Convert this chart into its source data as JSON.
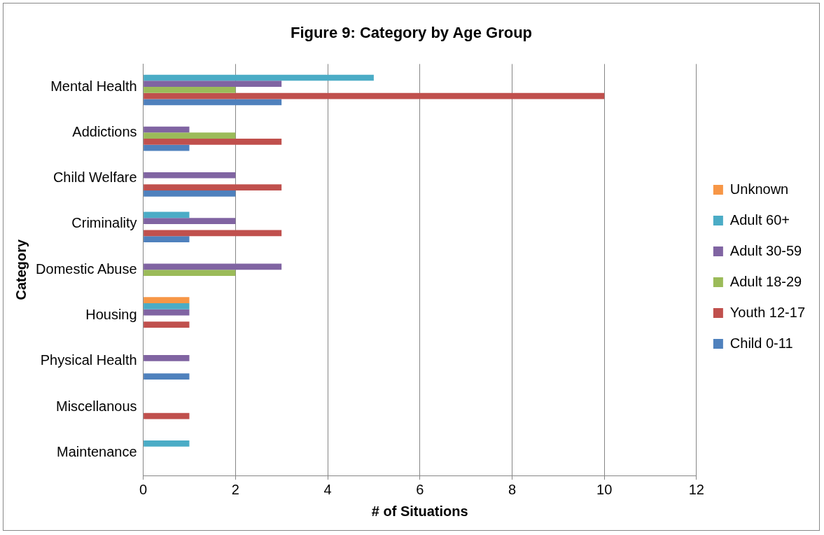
{
  "chart_data": {
    "type": "bar",
    "orientation": "horizontal",
    "title": "Figure 9: Category by Age Group",
    "xlabel": "# of Situations",
    "ylabel": "Category",
    "categories": [
      "Mental Health",
      "Addictions",
      "Child Welfare",
      "Criminality",
      "Domestic Abuse",
      "Housing",
      "Physical Health",
      "Miscellanous",
      "Maintenance"
    ],
    "series": [
      {
        "name": "Unknown",
        "color": "#f79646",
        "values": [
          null,
          null,
          null,
          null,
          null,
          1,
          null,
          null,
          null
        ]
      },
      {
        "name": "Adult 60+",
        "color": "#4bacc6",
        "values": [
          5,
          null,
          null,
          1,
          null,
          1,
          null,
          null,
          1
        ]
      },
      {
        "name": "Adult 30-59",
        "color": "#8064a2",
        "values": [
          3,
          1,
          2,
          2,
          3,
          1,
          1,
          null,
          null
        ]
      },
      {
        "name": "Adult 18-29",
        "color": "#9bbb59",
        "values": [
          2,
          2,
          null,
          null,
          2,
          null,
          null,
          null,
          null
        ]
      },
      {
        "name": "Youth 12-17",
        "color": "#c0504d",
        "values": [
          10,
          3,
          3,
          3,
          null,
          1,
          null,
          1,
          null
        ]
      },
      {
        "name": "Child 0-11",
        "color": "#4f81bd",
        "values": [
          3,
          1,
          2,
          1,
          null,
          null,
          1,
          null,
          null
        ]
      }
    ],
    "xlim": [
      0,
      12
    ],
    "xticks": [
      0,
      2,
      4,
      6,
      8,
      10,
      12
    ],
    "grid": "x",
    "legend": "right"
  }
}
